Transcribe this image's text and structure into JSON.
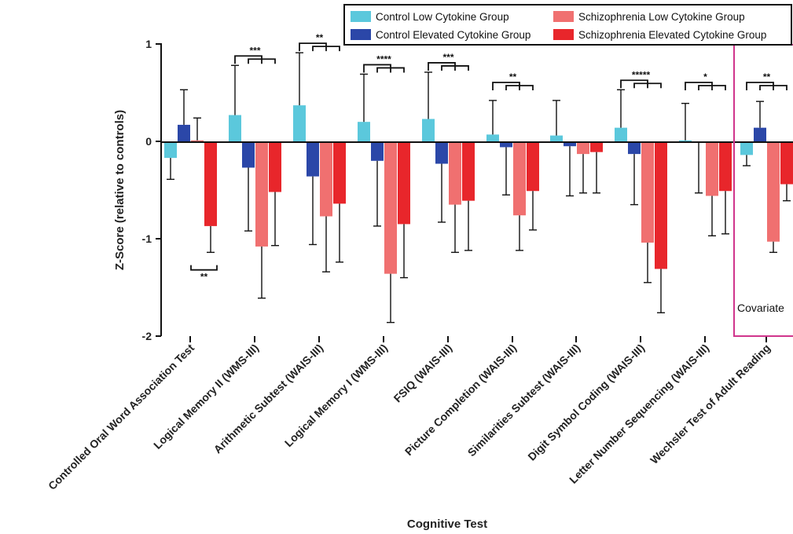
{
  "chart_data": {
    "type": "bar",
    "xlabel": "Cognitive Test",
    "ylabel": "Z-Score (relative to controls)",
    "ylim": [
      -2,
      1
    ],
    "yticks": [
      1,
      0,
      -1,
      -2
    ],
    "grid": false,
    "legend_position": "top-right",
    "categories": [
      "Controlled Oral Word Association Test",
      "Logical Memory II (WMS-III)",
      "Arithmetic Subtest (WAIS-III)",
      "Logical Memory I (WMS-III)",
      "FSIQ (WAIS-III)",
      "Picture Completion (WAIS-III)",
      "Similarities Subtest (WAIS-III)",
      "Digit Symbol Coding (WAIS-III)",
      "Letter Number Sequencing (WAIS-III)",
      "Wechsler Test of Adult Reading"
    ],
    "series": [
      {
        "name": "Control Low Cytokine Group",
        "color": "#5bc8dc",
        "values": [
          -0.17,
          0.27,
          0.37,
          0.2,
          0.23,
          0.07,
          0.06,
          0.14,
          0.01,
          -0.14
        ],
        "errors": [
          0.22,
          0.51,
          0.54,
          0.49,
          0.48,
          0.35,
          0.36,
          0.39,
          0.38,
          0.11
        ]
      },
      {
        "name": "Control Elevated Cytokine Group",
        "color": "#2b47a8",
        "values": [
          0.17,
          -0.27,
          -0.36,
          -0.2,
          -0.23,
          -0.06,
          -0.05,
          -0.13,
          -0.01,
          0.14
        ],
        "errors": [
          0.36,
          0.65,
          0.7,
          0.67,
          0.6,
          0.49,
          0.51,
          0.52,
          0.52,
          0.27
        ]
      },
      {
        "name": "Schizophrenia Low Cytokine Group",
        "color": "#f07070",
        "values": [
          0.01,
          -1.08,
          -0.77,
          -1.36,
          -0.65,
          -0.76,
          -0.13,
          -1.04,
          -0.56,
          -1.03
        ],
        "errors": [
          0.23,
          0.53,
          0.57,
          0.5,
          0.49,
          0.36,
          0.4,
          0.41,
          0.41,
          0.11
        ]
      },
      {
        "name": "Schizophrenia Elevated Cytokine Group",
        "color": "#e8262b",
        "values": [
          -0.87,
          -0.52,
          -0.64,
          -0.85,
          -0.61,
          -0.51,
          -0.11,
          -1.31,
          -0.51,
          -0.44
        ],
        "errors": [
          0.27,
          0.55,
          0.6,
          0.55,
          0.51,
          0.4,
          0.42,
          0.45,
          0.44,
          0.17
        ]
      }
    ],
    "significance": [
      "",
      "***",
      "**",
      "****",
      "***",
      "**",
      "",
      "*****",
      "*",
      "**"
    ],
    "significance_low": [
      "**",
      "",
      "",
      "",
      "",
      "",
      "",
      "",
      "",
      ""
    ],
    "annotation": "Covariate"
  }
}
